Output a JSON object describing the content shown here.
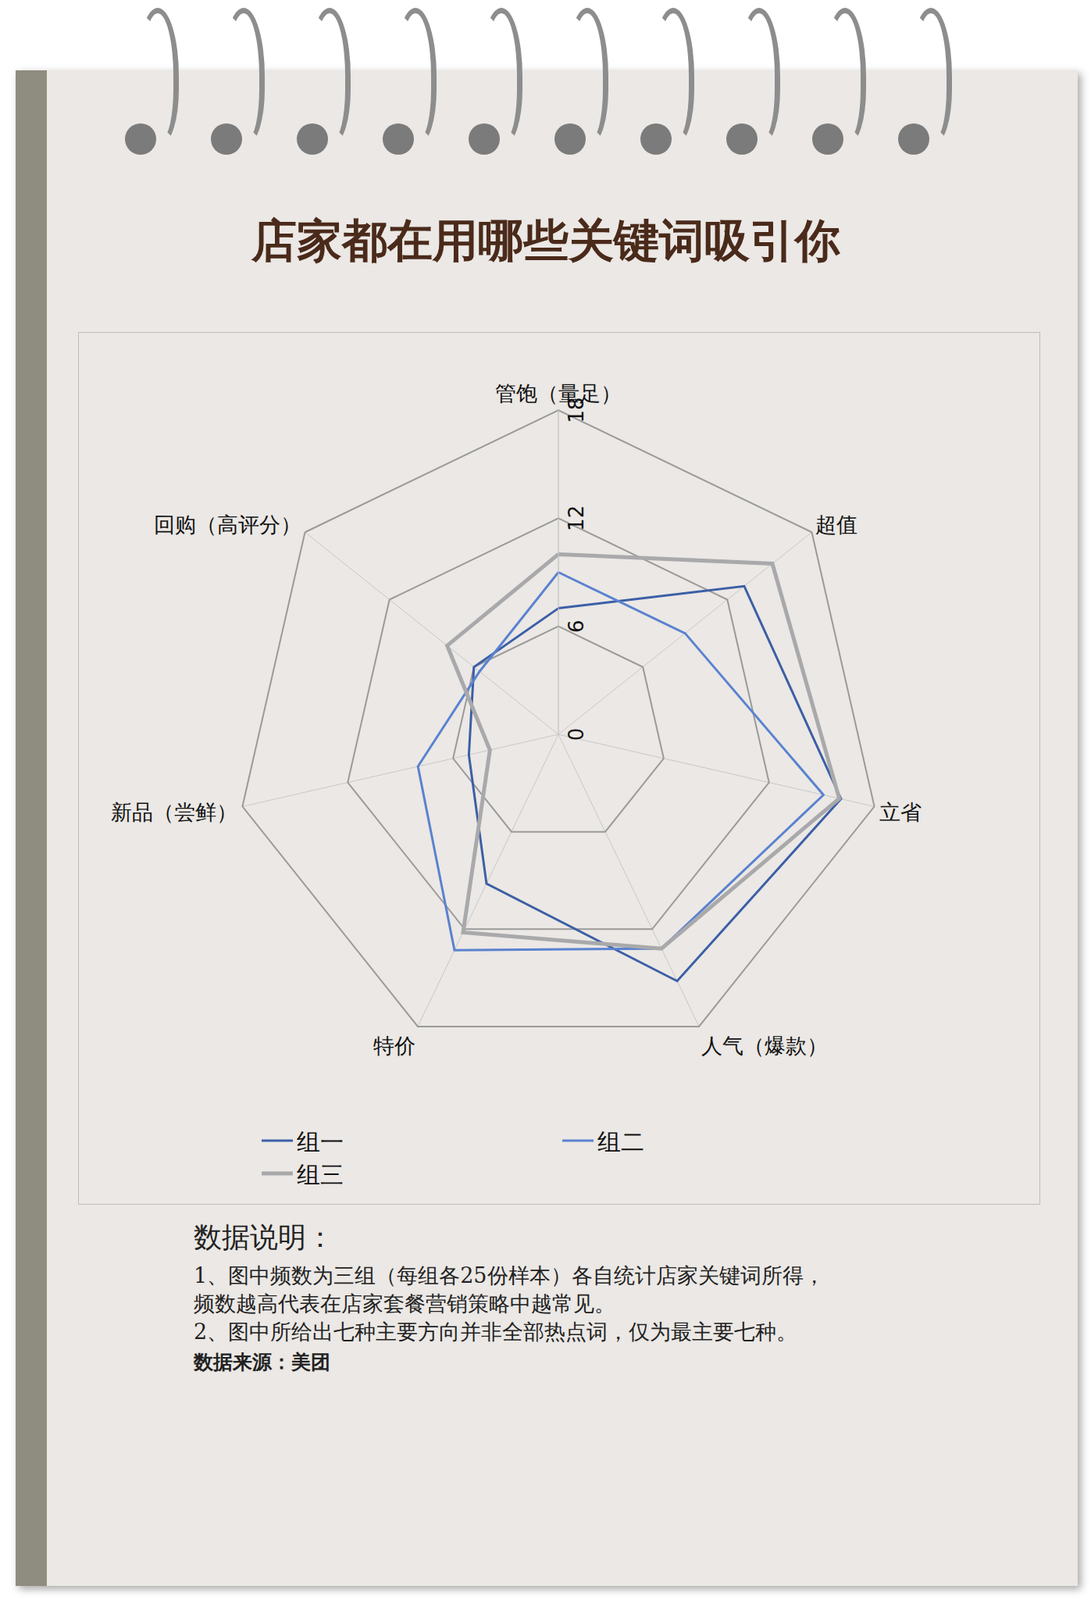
{
  "chart_data": {
    "type": "radar",
    "title": "店家都在用哪些关键词吸引你",
    "categories": [
      "管饱（量足）",
      "超值",
      "立省",
      "人气（爆款）",
      "特价",
      "新品（尝鲜）",
      "回购（高评分）"
    ],
    "series": [
      {
        "name": "组一",
        "color": "#3c5fa6",
        "values": [
          7.0,
          13.2,
          16.1,
          15.2,
          9.2,
          5.1,
          6.0
        ]
      },
      {
        "name": "组二",
        "color": "#5a82cf",
        "values": [
          9.0,
          9.0,
          15.1,
          13.2,
          13.3,
          8.0,
          5.6
        ]
      },
      {
        "name": "组三",
        "color": "#a9a9ab",
        "values": [
          10.0,
          15.2,
          16.0,
          13.2,
          12.2,
          3.9,
          7.9
        ]
      }
    ],
    "rlim": [
      0,
      18
    ],
    "rticks": [
      0,
      6,
      12,
      18
    ],
    "grid": true,
    "legend": "bottom",
    "notes": {
      "heading": "数据说明：",
      "lines": [
        "1、图中频数为三组（每组各25份样本）各自统计店家关键词所得，",
        "频数越高代表在店家套餐营销策略中越常见。",
        "2、图中所给出七种主要方向并非全部热点词，仅为最主要七种。"
      ],
      "source": "数据来源：美团"
    }
  }
}
